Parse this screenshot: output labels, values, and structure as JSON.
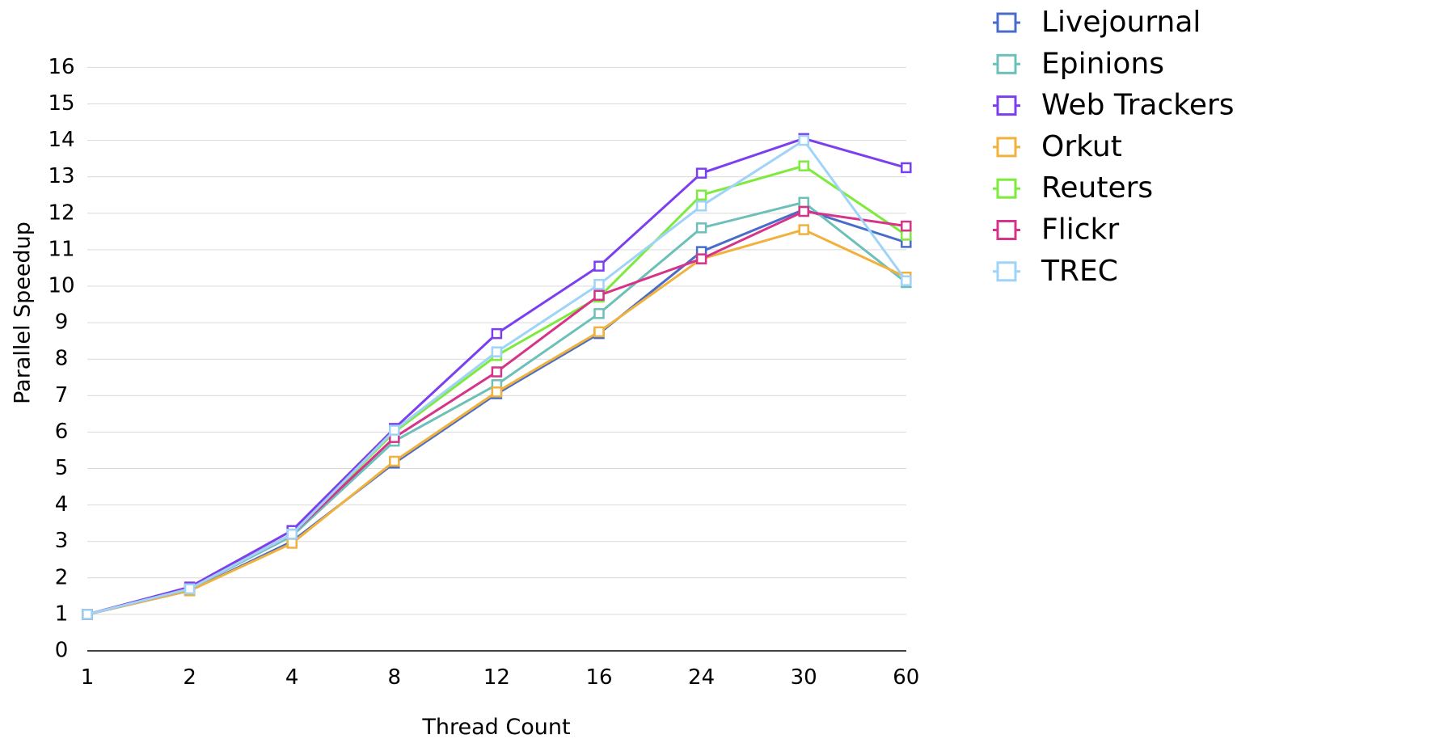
{
  "chart_data": {
    "type": "line",
    "xlabel": "Thread Count",
    "ylabel": "Parallel Speedup",
    "categories": [
      "1",
      "2",
      "4",
      "8",
      "12",
      "16",
      "24",
      "30",
      "60"
    ],
    "y_ticks": [
      "0",
      "1",
      "2",
      "3",
      "4",
      "5",
      "6",
      "7",
      "8",
      "9",
      "10",
      "11",
      "12",
      "13",
      "14",
      "15",
      "16"
    ],
    "ylim": [
      0,
      16
    ],
    "grid": "horizontal",
    "legend_position": "right",
    "series": [
      {
        "name": "Livejournal",
        "color": "#4a6cc9",
        "values": [
          1,
          1.65,
          3.0,
          5.15,
          7.05,
          8.7,
          10.95,
          12.1,
          11.2
        ]
      },
      {
        "name": "Epinions",
        "color": "#6cc0b8",
        "values": [
          1,
          1.7,
          3.15,
          5.75,
          7.3,
          9.25,
          11.6,
          12.3,
          10.1
        ]
      },
      {
        "name": "Web Trackers",
        "color": "#7b3ff0",
        "values": [
          1,
          1.75,
          3.3,
          6.1,
          8.7,
          10.55,
          13.1,
          14.05,
          13.25
        ]
      },
      {
        "name": "Orkut",
        "color": "#f0b23c",
        "values": [
          1,
          1.65,
          2.95,
          5.2,
          7.1,
          8.75,
          10.75,
          11.55,
          10.25
        ]
      },
      {
        "name": "Reuters",
        "color": "#7dea3c",
        "values": [
          1,
          1.7,
          3.2,
          6.0,
          8.1,
          9.7,
          12.5,
          13.3,
          11.4
        ]
      },
      {
        "name": "Flickr",
        "color": "#d6338a",
        "values": [
          1,
          1.7,
          3.2,
          5.85,
          7.65,
          9.75,
          10.75,
          12.05,
          11.65
        ]
      },
      {
        "name": "TREC",
        "color": "#9fd3f7",
        "values": [
          1,
          1.7,
          3.2,
          6.05,
          8.2,
          10.05,
          12.2,
          14.0,
          10.15
        ]
      }
    ]
  }
}
